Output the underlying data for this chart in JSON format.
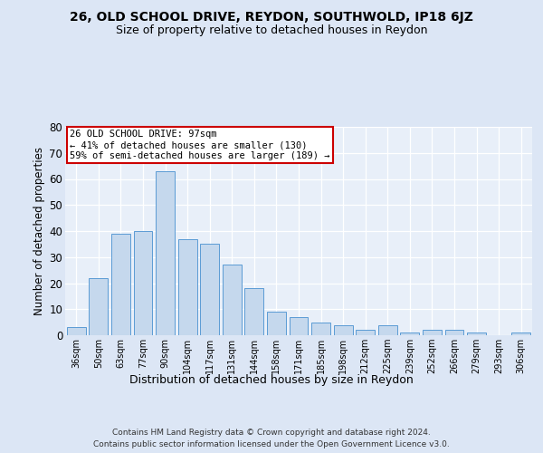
{
  "title1": "26, OLD SCHOOL DRIVE, REYDON, SOUTHWOLD, IP18 6JZ",
  "title2": "Size of property relative to detached houses in Reydon",
  "xlabel": "Distribution of detached houses by size in Reydon",
  "ylabel": "Number of detached properties",
  "categories": [
    "36sqm",
    "50sqm",
    "63sqm",
    "77sqm",
    "90sqm",
    "104sqm",
    "117sqm",
    "131sqm",
    "144sqm",
    "158sqm",
    "171sqm",
    "185sqm",
    "198sqm",
    "212sqm",
    "225sqm",
    "239sqm",
    "252sqm",
    "266sqm",
    "279sqm",
    "293sqm",
    "306sqm"
  ],
  "values": [
    3,
    22,
    39,
    40,
    63,
    37,
    35,
    27,
    18,
    9,
    7,
    5,
    4,
    2,
    4,
    1,
    2,
    2,
    1,
    0,
    1
  ],
  "bar_color": "#c5d8ed",
  "bar_edge_color": "#5b9bd5",
  "ylim": [
    0,
    80
  ],
  "yticks": [
    0,
    10,
    20,
    30,
    40,
    50,
    60,
    70,
    80
  ],
  "annotation_box_text": "26 OLD SCHOOL DRIVE: 97sqm\n← 41% of detached houses are smaller (130)\n59% of semi-detached houses are larger (189) →",
  "annotation_box_color": "#cc0000",
  "footer1": "Contains HM Land Registry data © Crown copyright and database right 2024.",
  "footer2": "Contains public sector information licensed under the Open Government Licence v3.0.",
  "background_color": "#dce6f5",
  "plot_bg_color": "#e8eff9"
}
